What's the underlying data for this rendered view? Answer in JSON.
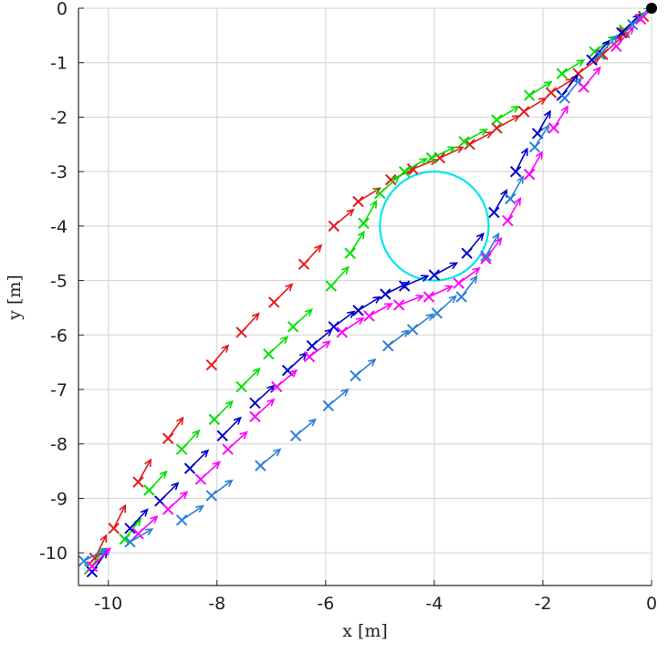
{
  "chart_data": {
    "type": "scatter",
    "title": "",
    "xlabel": "x [m]",
    "ylabel": "y [m]",
    "xlim": [
      -10.55,
      0
    ],
    "ylim": [
      -10.6,
      0
    ],
    "x_ticks": [
      -10,
      -8,
      -6,
      -4,
      -2,
      0
    ],
    "y_ticks": [
      0,
      -1,
      -2,
      -3,
      -4,
      -5,
      -6,
      -7,
      -8,
      -9,
      -10
    ],
    "x_tick_labels": [
      "-10",
      "-8",
      "-6",
      "-4",
      "-2",
      "0"
    ],
    "y_tick_labels": [
      "0",
      "-1",
      "-2",
      "-3",
      "-4",
      "-5",
      "-6",
      "-7",
      "-8",
      "-9",
      "-10"
    ],
    "grid": true,
    "obstacle": {
      "center": [
        -4,
        -4
      ],
      "radius": 1,
      "color": "#00e5ee"
    },
    "goal": {
      "x": 0,
      "y": 0,
      "color": "#000000"
    },
    "series": [
      {
        "color": "#e41a1c",
        "points": [
          [
            -10.25,
            -10.1
          ],
          [
            -9.9,
            -9.55
          ],
          [
            -9.45,
            -8.7
          ],
          [
            -8.9,
            -7.9
          ],
          [
            -8.1,
            -6.55
          ],
          [
            -7.55,
            -5.95
          ],
          [
            -6.95,
            -5.4
          ],
          [
            -6.4,
            -4.7
          ],
          [
            -5.85,
            -4.0
          ],
          [
            -5.4,
            -3.55
          ],
          [
            -4.8,
            -3.15
          ],
          [
            -4.4,
            -2.95
          ],
          [
            -3.9,
            -2.75
          ],
          [
            -3.35,
            -2.5
          ],
          [
            -2.85,
            -2.2
          ],
          [
            -2.35,
            -1.9
          ],
          [
            -1.85,
            -1.55
          ],
          [
            -1.35,
            -1.2
          ],
          [
            -0.9,
            -0.85
          ],
          [
            -0.5,
            -0.45
          ],
          [
            -0.15,
            -0.15
          ]
        ],
        "headings": [
          [
            0.4,
            0.8
          ],
          [
            0.4,
            0.8
          ],
          [
            0.45,
            0.8
          ],
          [
            0.5,
            0.7
          ],
          [
            0.55,
            0.65
          ],
          [
            0.55,
            0.6
          ],
          [
            0.6,
            0.6
          ],
          [
            0.55,
            0.6
          ],
          [
            0.6,
            0.5
          ],
          [
            0.65,
            0.4
          ],
          [
            0.65,
            0.3
          ],
          [
            0.65,
            0.25
          ],
          [
            0.65,
            0.3
          ],
          [
            0.65,
            0.35
          ],
          [
            0.65,
            0.35
          ],
          [
            0.65,
            0.4
          ],
          [
            0.65,
            0.4
          ],
          [
            0.6,
            0.45
          ],
          [
            0.55,
            0.5
          ],
          [
            0.5,
            0.5
          ],
          [
            0.3,
            0.3
          ]
        ]
      },
      {
        "color": "#00e000",
        "points": [
          [
            -10.35,
            -10.3
          ],
          [
            -9.7,
            -9.75
          ],
          [
            -9.25,
            -8.85
          ],
          [
            -8.65,
            -8.1
          ],
          [
            -8.05,
            -7.55
          ],
          [
            -7.55,
            -6.95
          ],
          [
            -7.05,
            -6.35
          ],
          [
            -6.6,
            -5.85
          ],
          [
            -5.9,
            -5.1
          ],
          [
            -5.55,
            -4.5
          ],
          [
            -5.3,
            -3.95
          ],
          [
            -5.0,
            -3.4
          ],
          [
            -4.55,
            -3.0
          ],
          [
            -4.05,
            -2.75
          ],
          [
            -3.45,
            -2.45
          ],
          [
            -2.85,
            -2.05
          ],
          [
            -2.25,
            -1.6
          ],
          [
            -1.65,
            -1.2
          ],
          [
            -1.05,
            -0.8
          ],
          [
            -0.5,
            -0.4
          ]
        ],
        "headings": [
          [
            0.45,
            0.6
          ],
          [
            0.55,
            0.7
          ],
          [
            0.6,
            0.65
          ],
          [
            0.6,
            0.65
          ],
          [
            0.6,
            0.6
          ],
          [
            0.6,
            0.6
          ],
          [
            0.6,
            0.55
          ],
          [
            0.6,
            0.55
          ],
          [
            0.55,
            0.6
          ],
          [
            0.45,
            0.7
          ],
          [
            0.4,
            0.7
          ],
          [
            0.55,
            0.5
          ],
          [
            0.6,
            0.35
          ],
          [
            0.65,
            0.3
          ],
          [
            0.65,
            0.35
          ],
          [
            0.65,
            0.4
          ],
          [
            0.65,
            0.4
          ],
          [
            0.65,
            0.4
          ],
          [
            0.6,
            0.45
          ],
          [
            0.4,
            0.35
          ]
        ]
      },
      {
        "color": "#0000cc",
        "points": [
          [
            -10.3,
            -10.35
          ],
          [
            -9.6,
            -9.55
          ],
          [
            -9.05,
            -9.05
          ],
          [
            -8.5,
            -8.45
          ],
          [
            -7.9,
            -7.85
          ],
          [
            -7.3,
            -7.25
          ],
          [
            -6.7,
            -6.65
          ],
          [
            -6.25,
            -6.2
          ],
          [
            -5.85,
            -5.85
          ],
          [
            -5.4,
            -5.55
          ],
          [
            -4.9,
            -5.25
          ],
          [
            -4.55,
            -5.1
          ],
          [
            -4.0,
            -4.9
          ],
          [
            -3.4,
            -4.5
          ],
          [
            -2.9,
            -3.75
          ],
          [
            -2.5,
            -3.0
          ],
          [
            -2.1,
            -2.3
          ],
          [
            -1.65,
            -1.6
          ],
          [
            -1.1,
            -0.95
          ],
          [
            -0.55,
            -0.45
          ]
        ],
        "headings": [
          [
            0.5,
            0.7
          ],
          [
            0.55,
            0.6
          ],
          [
            0.6,
            0.6
          ],
          [
            0.6,
            0.6
          ],
          [
            0.6,
            0.6
          ],
          [
            0.6,
            0.55
          ],
          [
            0.6,
            0.55
          ],
          [
            0.6,
            0.5
          ],
          [
            0.6,
            0.45
          ],
          [
            0.65,
            0.4
          ],
          [
            0.7,
            0.35
          ],
          [
            0.7,
            0.3
          ],
          [
            0.65,
            0.35
          ],
          [
            0.5,
            0.6
          ],
          [
            0.4,
            0.7
          ],
          [
            0.35,
            0.7
          ],
          [
            0.4,
            0.7
          ],
          [
            0.5,
            0.65
          ],
          [
            0.5,
            0.55
          ],
          [
            0.4,
            0.4
          ]
        ]
      },
      {
        "color": "#ff00ff",
        "points": [
          [
            -10.3,
            -10.25
          ],
          [
            -9.45,
            -9.65
          ],
          [
            -8.9,
            -9.2
          ],
          [
            -8.3,
            -8.65
          ],
          [
            -7.8,
            -8.1
          ],
          [
            -7.3,
            -7.5
          ],
          [
            -6.9,
            -6.95
          ],
          [
            -6.3,
            -6.4
          ],
          [
            -5.7,
            -5.95
          ],
          [
            -5.2,
            -5.65
          ],
          [
            -4.65,
            -5.45
          ],
          [
            -4.1,
            -5.3
          ],
          [
            -3.55,
            -5.05
          ],
          [
            -3.05,
            -4.6
          ],
          [
            -2.65,
            -3.9
          ],
          [
            -2.25,
            -3.05
          ],
          [
            -1.8,
            -2.2
          ],
          [
            -1.25,
            -1.45
          ],
          [
            -0.65,
            -0.7
          ],
          [
            -0.2,
            -0.2
          ]
        ],
        "headings": [
          [
            0.55,
            0.55
          ],
          [
            0.6,
            0.55
          ],
          [
            0.6,
            0.55
          ],
          [
            0.6,
            0.55
          ],
          [
            0.6,
            0.55
          ],
          [
            0.6,
            0.55
          ],
          [
            0.6,
            0.5
          ],
          [
            0.6,
            0.45
          ],
          [
            0.6,
            0.4
          ],
          [
            0.65,
            0.35
          ],
          [
            0.65,
            0.25
          ],
          [
            0.65,
            0.3
          ],
          [
            0.55,
            0.4
          ],
          [
            0.45,
            0.6
          ],
          [
            0.4,
            0.7
          ],
          [
            0.4,
            0.7
          ],
          [
            0.45,
            0.7
          ],
          [
            0.5,
            0.6
          ],
          [
            0.45,
            0.5
          ],
          [
            0.2,
            0.2
          ]
        ]
      },
      {
        "color": "#2c7fd8",
        "points": [
          [
            -10.45,
            -10.15
          ],
          [
            -9.6,
            -9.8
          ],
          [
            -8.65,
            -9.4
          ],
          [
            -8.1,
            -8.95
          ],
          [
            -7.2,
            -8.4
          ],
          [
            -6.55,
            -7.85
          ],
          [
            -5.95,
            -7.3
          ],
          [
            -5.45,
            -6.75
          ],
          [
            -4.85,
            -6.2
          ],
          [
            -4.4,
            -5.9
          ],
          [
            -3.95,
            -5.6
          ],
          [
            -3.5,
            -5.3
          ],
          [
            -3.05,
            -4.55
          ],
          [
            -2.6,
            -3.5
          ],
          [
            -2.15,
            -2.55
          ],
          [
            -1.6,
            -1.65
          ],
          [
            -0.95,
            -0.85
          ],
          [
            -0.35,
            -0.3
          ]
        ],
        "headings": [
          [
            0.55,
            0.3
          ],
          [
            0.6,
            0.35
          ],
          [
            0.6,
            0.4
          ],
          [
            0.6,
            0.45
          ],
          [
            0.6,
            0.5
          ],
          [
            0.6,
            0.5
          ],
          [
            0.6,
            0.5
          ],
          [
            0.6,
            0.5
          ],
          [
            0.6,
            0.45
          ],
          [
            0.6,
            0.45
          ],
          [
            0.55,
            0.5
          ],
          [
            0.45,
            0.6
          ],
          [
            0.4,
            0.7
          ],
          [
            0.4,
            0.7
          ],
          [
            0.45,
            0.7
          ],
          [
            0.5,
            0.6
          ],
          [
            0.5,
            0.55
          ],
          [
            0.3,
            0.3
          ]
        ]
      }
    ]
  }
}
